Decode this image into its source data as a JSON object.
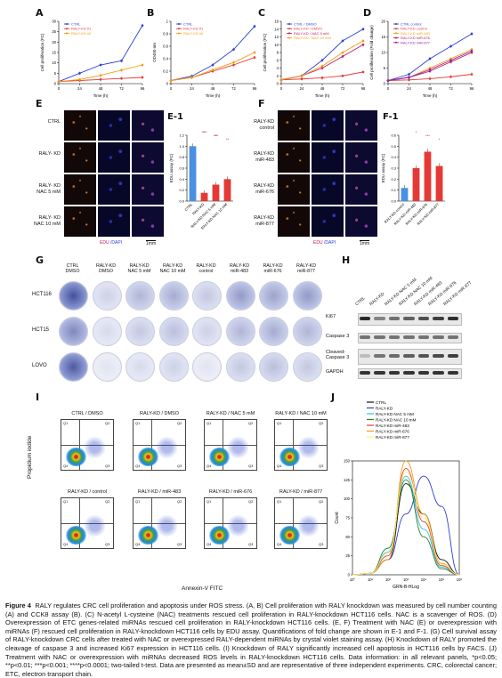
{
  "panels": {
    "A": "A",
    "B": "B",
    "C": "C",
    "D": "D",
    "E": "E",
    "E1": "E-1",
    "F": "F",
    "F1": "F-1",
    "G": "G",
    "H": "H",
    "I": "I",
    "J": "J"
  },
  "chart_data": [
    {
      "type": "line",
      "panel": "A",
      "ylabel": "Cell proliferation (FC)",
      "xlabel": "Time (h)",
      "x": [
        0,
        24,
        48,
        72,
        96
      ],
      "ylim": [
        0,
        30
      ],
      "yticks": [
        0,
        5,
        10,
        15,
        20,
        25,
        30
      ],
      "series": [
        {
          "name": "CTRL",
          "color": "#2b3fd4",
          "values": [
            1,
            5,
            9,
            11,
            28
          ]
        },
        {
          "name": "RALY-KD #1",
          "color": "#e53935",
          "values": [
            1,
            1.5,
            2,
            2.5,
            3
          ]
        },
        {
          "name": "RALY-KD #2",
          "color": "#f39c12",
          "values": [
            1,
            2,
            4,
            6.5,
            9
          ]
        }
      ]
    },
    {
      "type": "line",
      "panel": "B",
      "ylabel": "OD450 nm",
      "xlabel": "Time (h)",
      "x": [
        0,
        24,
        48,
        72,
        96
      ],
      "ylim": [
        0,
        1.0
      ],
      "yticks": [
        0,
        0.2,
        0.4,
        0.6,
        0.8,
        1.0
      ],
      "series": [
        {
          "name": "CTRL",
          "color": "#2b3fd4",
          "values": [
            0.05,
            0.12,
            0.3,
            0.55,
            0.92
          ]
        },
        {
          "name": "RALY-KD #1",
          "color": "#e53935",
          "values": [
            0.05,
            0.1,
            0.2,
            0.3,
            0.42
          ]
        },
        {
          "name": "RALY-KD #2",
          "color": "#f39c12",
          "values": [
            0.05,
            0.1,
            0.22,
            0.34,
            0.5
          ]
        }
      ]
    },
    {
      "type": "line",
      "panel": "C",
      "ylabel": "Cell proliferation (FC)",
      "xlabel": "Time (h)",
      "x": [
        0,
        24,
        48,
        72,
        96
      ],
      "ylim": [
        0,
        16
      ],
      "yticks": [
        0,
        2,
        4,
        6,
        8,
        10,
        12,
        14,
        16
      ],
      "series": [
        {
          "name": "CTRL / DMSO",
          "color": "#2b3fd4",
          "values": [
            1,
            2,
            6,
            11,
            14
          ]
        },
        {
          "name": "RALY-KD / DMSO",
          "color": "#e53935",
          "values": [
            1,
            1.2,
            1.5,
            2,
            3
          ]
        },
        {
          "name": "RALY-KD / NAC 5 mM",
          "color": "#c2185b",
          "values": [
            1,
            2,
            4,
            7,
            10
          ]
        },
        {
          "name": "RALY-KD / NAC 10 mM",
          "color": "#f39c12",
          "values": [
            1,
            2,
            4.5,
            8,
            11
          ]
        }
      ]
    },
    {
      "type": "line",
      "panel": "D",
      "ylabel": "Cell proliferation (Fold change)",
      "xlabel": "Time (h)",
      "x": [
        0,
        24,
        48,
        72,
        96
      ],
      "ylim": [
        0,
        20
      ],
      "yticks": [
        0,
        5,
        10,
        15,
        20
      ],
      "series": [
        {
          "name": "CTRL control",
          "color": "#2b3fd4",
          "values": [
            1,
            3,
            8,
            12,
            16
          ]
        },
        {
          "name": "RALY-KD control",
          "color": "#e53935",
          "values": [
            1,
            1.2,
            1.6,
            2.2,
            3
          ]
        },
        {
          "name": "RALY-KD miR-483",
          "color": "#f39c12",
          "values": [
            1,
            2,
            5,
            8,
            11
          ]
        },
        {
          "name": "RALY-KD miR-676",
          "color": "#c2185b",
          "values": [
            1,
            2,
            4,
            7,
            10
          ]
        },
        {
          "name": "RALY-KD miR-877",
          "color": "#8e24aa",
          "values": [
            1,
            2,
            4.5,
            7.5,
            10.5
          ]
        }
      ]
    },
    {
      "type": "bar",
      "panel": "E-1",
      "ylabel": "EDU assay (FC)",
      "categories": [
        "CTRL",
        "RALY-KD",
        "RALY-KD NAC 5 mM",
        "RALY-KD NAC 10 mM"
      ],
      "values": [
        1.0,
        0.15,
        0.3,
        0.4
      ],
      "colors": [
        "#4a90e2",
        "#e53935",
        "#e53935",
        "#e53935"
      ],
      "ylim": [
        0,
        1.2
      ],
      "yticks": [
        0.0,
        0.2,
        0.4,
        0.6,
        0.8,
        1.0,
        1.2
      ],
      "annotations": [
        "****",
        "***",
        "**",
        "*",
        "***"
      ]
    },
    {
      "type": "bar",
      "panel": "F-1",
      "ylabel": "EDU assay (FC)",
      "categories": [
        "RALY-KD control",
        "RALY-KD miR-483",
        "RALY-KD miR-676",
        "RALY-KD miR-877"
      ],
      "values": [
        0.12,
        0.3,
        0.45,
        0.32
      ],
      "colors": [
        "#4a90e2",
        "#e53935",
        "#e53935",
        "#e53935"
      ],
      "ylim": [
        0,
        0.6
      ],
      "yticks": [
        0.0,
        0.1,
        0.2,
        0.3,
        0.4,
        0.5,
        0.6
      ],
      "annotations": [
        "*",
        "***",
        "*"
      ]
    },
    {
      "type": "line",
      "panel": "J",
      "ylabel": "Count",
      "xlabel": "GRN-B-HLog",
      "ylim": [
        0,
        150
      ],
      "yticks": [
        0,
        25,
        50,
        75,
        100,
        125,
        150
      ],
      "xticks": [
        "10°",
        "10¹",
        "10²",
        "10³",
        "10⁴",
        "10⁵",
        "10⁶"
      ],
      "series": [
        {
          "name": "CTRL",
          "color": "#111111",
          "values": [
            0,
            2,
            20,
            120,
            80,
            20,
            0
          ]
        },
        {
          "name": "RALY-KD",
          "color": "#2b3fd4",
          "values": [
            0,
            2,
            20,
            80,
            130,
            90,
            0
          ]
        },
        {
          "name": "RALY-KD NAC 5 mM",
          "color": "#26c6da",
          "values": [
            0,
            2,
            30,
            130,
            60,
            10,
            0
          ]
        },
        {
          "name": "RALY-KD NAC 10 mM",
          "color": "#2e7d32",
          "values": [
            0,
            2,
            35,
            125,
            50,
            8,
            0
          ]
        },
        {
          "name": "RALY-KD miR-483",
          "color": "#e53935",
          "values": [
            0,
            2,
            25,
            140,
            70,
            12,
            0
          ]
        },
        {
          "name": "RALY-KD miR-676",
          "color": "#f39c12",
          "values": [
            0,
            2,
            20,
            150,
            80,
            15,
            0
          ]
        },
        {
          "name": "RALY-KD miR-877",
          "color": "#fff176",
          "values": [
            0,
            2,
            28,
            135,
            75,
            14,
            0
          ]
        }
      ]
    }
  ],
  "E": {
    "rows": [
      "CTRL",
      "RALY- KD",
      "RALY- KD\nNAC 5 mM",
      "RALY- KD\nNAC 10 mM"
    ],
    "edu": "EDU",
    "dapi": "DAPI",
    "scale": "1mm"
  },
  "F": {
    "rows": [
      "RALY-KD\ncontrol",
      "RALY-KD\nmiR-483",
      "RALY-KD\nmiR-676",
      "RALY-KD\nmiR-877"
    ],
    "edu": "EDU",
    "dapi": "DAPI",
    "scale": "1mm"
  },
  "G": {
    "cols": [
      "CTRL\nDMSO",
      "RALY-KD\nDMSO",
      "RALY-KD\nNAC 5 mM",
      "RALY-KD\nNAC 10 mM",
      "RALY-KD\ncontrol",
      "RALY-KD\nmiR-483",
      "RALY-KD\nmiR-676",
      "RALY-KD\nmiR-877"
    ],
    "rows": [
      "HCT116",
      "HCT15",
      "LOVO"
    ]
  },
  "H": {
    "cols": [
      "CTRL",
      "RALY-KD",
      "RALY-KD NAC 5 mM",
      "RALY-KD NAC 10 mM",
      "RALY-KD miR-483",
      "RALY-KD miR-676",
      "RALY-KD miR-877"
    ],
    "rows": [
      "Ki67",
      "Caspase 3",
      "Cleaved-\nCaspase 3",
      "GAPDH"
    ]
  },
  "I": {
    "titles": [
      "CTRL / DMSO",
      "RALY-KD / DMSO",
      "RALY-KD / NAC 5 mM",
      "RALY-KD / NAC 10 mM",
      "RALY-KD / control",
      "RALY-KD / miR-483",
      "RALY-KD / miR-676",
      "RALY-KD / miR-877"
    ],
    "ylabel": "Propidium iodide",
    "xlabel": "Annexin-V FITC",
    "quads": [
      "Q1",
      "Q2",
      "Q3",
      "Q4"
    ]
  },
  "caption": {
    "title": "Figure 4",
    "text": "RALY regulates CRC cell proliferation and apoptosis under ROS stress. (A, B) Cell proliferation with RALY knockdown was measured by cell number counting (A) and CCK8 assay (B). (C) N-acetyl L-cysteine (NAC) treatments rescued cell proliferation in RALY-knockdown HCT116 cells. NAC is a scavenger of ROS. (D) Overexpression of ETC genes-related miRNAs rescued cell proliferation in RALY-knockdown HCT116 cells. (E, F) Treatment with NAC (E) or overexpression with miRNAs (F) rescued cell proliferation in RALY-knockdown HCT116 cells by EDU assay. Quantifications of fold change are shown in E-1 and F-1. (G) Cell survival assay of RALY-knockdown CRC cells after treated with NAC or overexpressed RALY-dependent miRNAs by crystal violet staining assay. (H) Knockdown of RALY promoted the cleavage of caspase 3 and increased Ki67 expression in HCT116 cells. (I) Knockdown of RALY significantly increased cell apoptosis in HCT116 cells by FACS. (J) Treatment with NAC or overexpression with miRNAs decreased ROS levels in RALY-knockdown HCT116 cells. Data information: in all relevant panels, *p<0.05; **p<0.01; ***p<0.001; ****p<0.0001; two-tailed t-test. Data are presented as mean±SD and are representative of three independent experiments. CRC, colorectal cancer; ETC, electron transport chain."
  }
}
